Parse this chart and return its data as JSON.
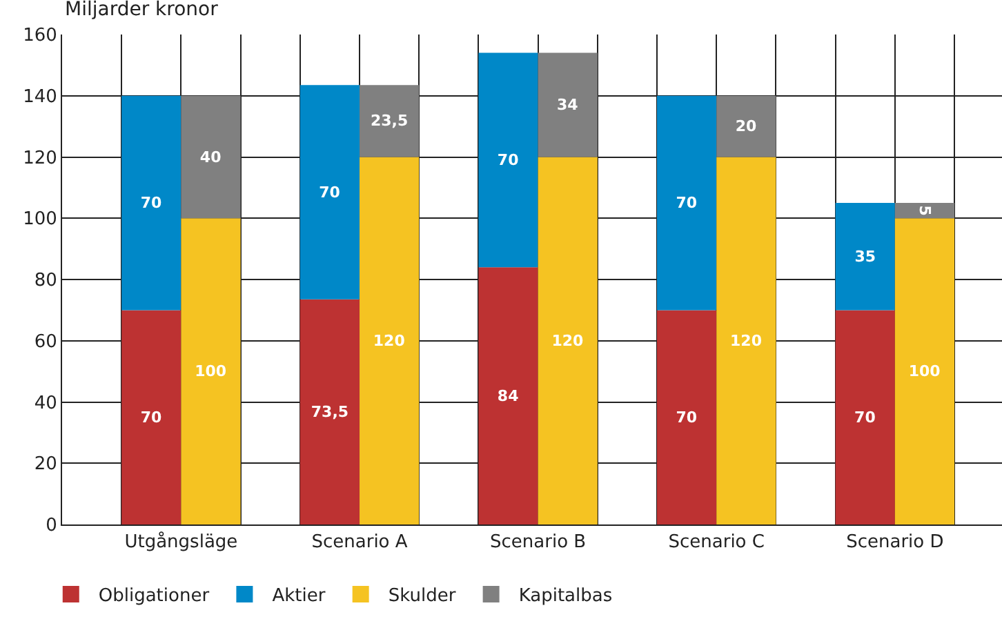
{
  "chart_data": {
    "type": "bar",
    "ylabel": "Miljarder kronor",
    "categories": [
      "Utgångsläge",
      null,
      null,
      "Scenario A",
      null,
      null,
      "Scenario B",
      null,
      null,
      "Scenario C",
      null,
      null,
      "Scenario D",
      null,
      null
    ],
    "stacked": true,
    "ylim": [
      0,
      160
    ],
    "yticks": [
      0,
      20,
      40,
      60,
      80,
      100,
      120,
      140,
      160
    ],
    "grid": true,
    "legend": "bottom",
    "series": [
      {
        "name": "Obligationer",
        "color": "#bd3232",
        "values": [
          70,
          null,
          null,
          73.5,
          null,
          null,
          84,
          null,
          null,
          70,
          null,
          null,
          70,
          null,
          null
        ],
        "value_labels": [
          "70",
          null,
          null,
          "73,5",
          null,
          null,
          "84",
          null,
          null,
          "70",
          null,
          null,
          "70",
          null,
          null
        ]
      },
      {
        "name": "Aktier",
        "color": "#0088c8",
        "values": [
          70,
          null,
          null,
          70,
          null,
          null,
          70,
          null,
          null,
          70,
          null,
          null,
          35,
          null,
          null
        ],
        "value_labels": [
          "70",
          null,
          null,
          "70",
          null,
          null,
          "70",
          null,
          null,
          "70",
          null,
          null,
          "35",
          null,
          null
        ]
      },
      {
        "name": "Skulder",
        "color": "#f5c322",
        "values": [
          null,
          100,
          null,
          null,
          120,
          null,
          null,
          120,
          null,
          null,
          120,
          null,
          null,
          100,
          null
        ],
        "value_labels": [
          null,
          "100",
          null,
          null,
          "120",
          null,
          null,
          "120",
          null,
          null,
          "120",
          null,
          null,
          "100",
          null
        ]
      },
      {
        "name": "Kapitalbas",
        "color": "#808080",
        "values": [
          null,
          40,
          null,
          null,
          23.5,
          null,
          null,
          34,
          null,
          null,
          20,
          null,
          null,
          5,
          null
        ],
        "value_labels": [
          null,
          "40",
          null,
          null,
          "23,5",
          null,
          null,
          "34",
          null,
          null,
          "20",
          null,
          null,
          "5",
          null
        ]
      }
    ]
  }
}
